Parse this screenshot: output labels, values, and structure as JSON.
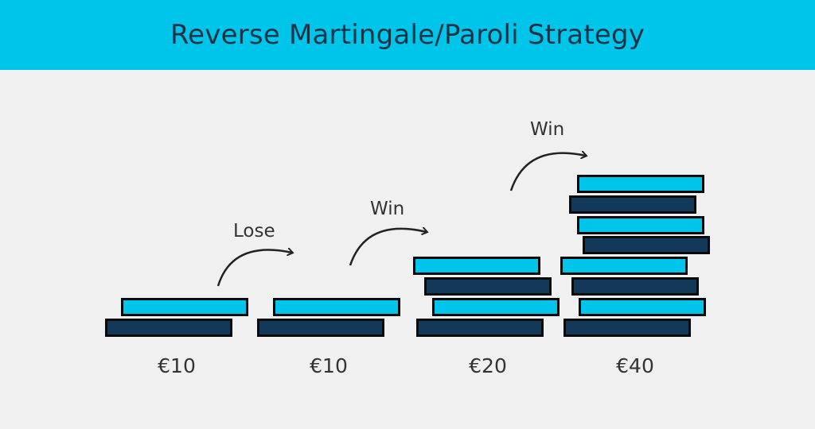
{
  "title": "Reverse Martingale/Paroli Strategy",
  "stakes": [
    {
      "amount": "€10",
      "chips": 2
    },
    {
      "amount": "€10",
      "chips": 2
    },
    {
      "amount": "€20",
      "chips": 4
    },
    {
      "amount": "€40",
      "chips": 8
    }
  ],
  "transitions": [
    {
      "label": "Lose"
    },
    {
      "label": "Win"
    },
    {
      "label": "Win"
    }
  ],
  "colors": {
    "banner": "#00c5ea",
    "chip_light": "#00c5ea",
    "chip_dark": "#12395a",
    "background": "#f0f0f0"
  }
}
